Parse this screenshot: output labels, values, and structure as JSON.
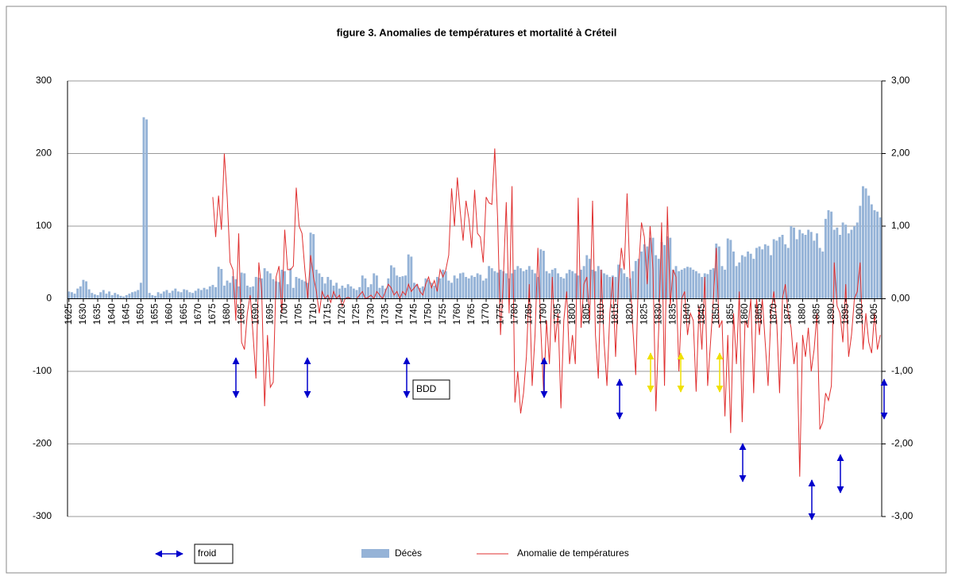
{
  "chart_data": {
    "type": "bar",
    "title": "figure 3. Anomalies de températures et mortalité à Créteil",
    "x": [
      1625,
      1626,
      1627,
      1628,
      1629,
      1630,
      1631,
      1632,
      1633,
      1634,
      1635,
      1636,
      1637,
      1638,
      1639,
      1640,
      1641,
      1642,
      1643,
      1644,
      1645,
      1646,
      1647,
      1648,
      1649,
      1650,
      1651,
      1652,
      1653,
      1654,
      1655,
      1656,
      1657,
      1658,
      1659,
      1660,
      1661,
      1662,
      1663,
      1664,
      1665,
      1666,
      1667,
      1668,
      1669,
      1670,
      1671,
      1672,
      1673,
      1674,
      1675,
      1676,
      1677,
      1678,
      1679,
      1680,
      1681,
      1682,
      1683,
      1684,
      1685,
      1686,
      1687,
      1688,
      1689,
      1690,
      1691,
      1692,
      1693,
      1694,
      1695,
      1696,
      1697,
      1698,
      1699,
      1700,
      1701,
      1702,
      1703,
      1704,
      1705,
      1706,
      1707,
      1708,
      1709,
      1710,
      1711,
      1712,
      1713,
      1714,
      1715,
      1716,
      1717,
      1718,
      1719,
      1720,
      1721,
      1722,
      1723,
      1724,
      1725,
      1726,
      1727,
      1728,
      1729,
      1730,
      1731,
      1732,
      1733,
      1734,
      1735,
      1736,
      1737,
      1738,
      1739,
      1740,
      1741,
      1742,
      1743,
      1744,
      1745,
      1746,
      1747,
      1748,
      1749,
      1750,
      1751,
      1752,
      1753,
      1754,
      1755,
      1756,
      1757,
      1758,
      1759,
      1760,
      1761,
      1762,
      1763,
      1764,
      1765,
      1766,
      1767,
      1768,
      1769,
      1770,
      1771,
      1772,
      1773,
      1774,
      1775,
      1776,
      1777,
      1778,
      1779,
      1780,
      1781,
      1782,
      1783,
      1784,
      1785,
      1786,
      1787,
      1788,
      1789,
      1790,
      1791,
      1792,
      1793,
      1794,
      1795,
      1796,
      1797,
      1798,
      1799,
      1800,
      1801,
      1802,
      1803,
      1804,
      1805,
      1806,
      1807,
      1808,
      1809,
      1810,
      1811,
      1812,
      1813,
      1814,
      1815,
      1816,
      1817,
      1818,
      1819,
      1820,
      1821,
      1822,
      1823,
      1824,
      1825,
      1826,
      1827,
      1828,
      1829,
      1830,
      1831,
      1832,
      1833,
      1834,
      1835,
      1836,
      1837,
      1838,
      1839,
      1840,
      1841,
      1842,
      1843,
      1844,
      1845,
      1846,
      1847,
      1848,
      1849,
      1850,
      1851,
      1852,
      1853,
      1854,
      1855,
      1856,
      1857,
      1858,
      1859,
      1860,
      1861,
      1862,
      1863,
      1864,
      1865,
      1866,
      1867,
      1868,
      1869,
      1870,
      1871,
      1872,
      1873,
      1874,
      1875,
      1876,
      1877,
      1878,
      1879,
      1880,
      1881,
      1882,
      1883,
      1884,
      1885,
      1886,
      1887,
      1888,
      1889,
      1890,
      1891,
      1892,
      1893,
      1894,
      1895,
      1896,
      1897,
      1898,
      1899,
      1900,
      1901,
      1902,
      1903,
      1904,
      1905,
      1906,
      1907
    ],
    "series": [
      {
        "name": "Décès",
        "type": "bar",
        "color": "#95b3d7",
        "values": [
          10,
          9,
          7,
          14,
          17,
          26,
          24,
          13,
          8,
          6,
          5,
          9,
          12,
          7,
          10,
          5,
          8,
          6,
          4,
          3,
          5,
          7,
          9,
          10,
          12,
          22,
          250,
          247,
          8,
          5,
          4,
          9,
          7,
          10,
          12,
          8,
          11,
          14,
          10,
          9,
          13,
          12,
          9,
          8,
          11,
          14,
          12,
          15,
          13,
          17,
          19,
          16,
          44,
          41,
          18,
          25,
          22,
          31,
          27,
          17,
          36,
          35,
          18,
          16,
          17,
          30,
          29,
          28,
          42,
          38,
          35,
          27,
          24,
          23,
          40,
          38,
          20,
          42,
          15,
          30,
          28,
          26,
          24,
          22,
          91,
          89,
          40,
          35,
          30,
          21,
          30,
          26,
          18,
          22,
          14,
          18,
          15,
          20,
          17,
          14,
          12,
          16,
          32,
          28,
          16,
          20,
          35,
          32,
          15,
          18,
          14,
          28,
          46,
          43,
          32,
          30,
          31,
          32,
          61,
          58,
          22,
          20,
          15,
          17,
          28,
          26,
          22,
          18,
          30,
          28,
          40,
          38,
          25,
          22,
          32,
          28,
          35,
          36,
          30,
          28,
          32,
          30,
          35,
          33,
          25,
          28,
          45,
          42,
          38,
          36,
          40,
          38,
          35,
          28,
          35,
          40,
          45,
          42,
          38,
          40,
          45,
          40,
          35,
          30,
          68,
          66,
          38,
          35,
          40,
          42,
          35,
          30,
          28,
          35,
          40,
          38,
          35,
          32,
          40,
          45,
          60,
          55,
          40,
          38,
          45,
          40,
          35,
          33,
          30,
          32,
          30,
          47,
          42,
          35,
          30,
          28,
          38,
          52,
          55,
          65,
          75,
          72,
          84,
          84,
          60,
          55,
          78,
          74,
          86,
          84,
          40,
          45,
          38,
          40,
          42,
          44,
          43,
          40,
          38,
          35,
          30,
          35,
          34,
          40,
          42,
          76,
          72,
          45,
          40,
          83,
          81,
          65,
          45,
          50,
          60,
          58,
          65,
          62,
          55,
          70,
          72,
          68,
          75,
          73,
          60,
          82,
          80,
          85,
          88,
          75,
          70,
          100,
          98,
          82,
          95,
          90,
          88,
          95,
          92,
          80,
          90,
          70,
          65,
          110,
          122,
          120,
          95,
          98,
          88,
          105,
          102,
          90,
          95,
          100,
          105,
          128,
          155,
          152,
          142,
          130,
          122,
          120,
          112
        ]
      },
      {
        "name": "Anomalie de températures",
        "type": "line",
        "axis": "y2",
        "color": "#e03030",
        "values": [
          null,
          null,
          null,
          null,
          null,
          null,
          null,
          null,
          null,
          null,
          null,
          null,
          null,
          null,
          null,
          null,
          null,
          null,
          null,
          null,
          null,
          null,
          null,
          null,
          null,
          null,
          null,
          null,
          null,
          null,
          null,
          null,
          null,
          null,
          null,
          null,
          null,
          null,
          null,
          null,
          null,
          null,
          null,
          null,
          null,
          null,
          null,
          null,
          null,
          null,
          1.4,
          0.85,
          1.42,
          0.95,
          2.0,
          1.4,
          0.5,
          0.4,
          -0.3,
          0.9,
          -0.6,
          -0.7,
          -0.2,
          0.05,
          -0.5,
          -1.1,
          0.5,
          0.1,
          -1.48,
          -0.5,
          -1.22,
          -1.15,
          0.3,
          0.45,
          -0.2,
          0.95,
          0.4,
          0.4,
          0.45,
          1.53,
          1.0,
          0.9,
          0.4,
          0.0,
          0.6,
          0.3,
          0.1,
          -0.2,
          0.1,
          0.0,
          0.05,
          -0.05,
          0.1,
          0.0,
          0.05,
          -0.1,
          0.0,
          0.02,
          0.0,
          0.0,
          0.0,
          0.05,
          0.1,
          0.0,
          0.02,
          0.05,
          0.0,
          0.1,
          0.05,
          0.0,
          0.1,
          0.2,
          0.15,
          0.05,
          0.1,
          0.0,
          0.1,
          0.05,
          0.2,
          0.1,
          0.15,
          0.2,
          0.1,
          0.05,
          0.2,
          0.3,
          0.15,
          0.25,
          0.1,
          0.4,
          0.3,
          0.4,
          0.6,
          1.52,
          1.0,
          1.67,
          1.2,
          0.8,
          1.35,
          1.1,
          0.7,
          1.5,
          0.9,
          0.85,
          0.5,
          1.4,
          1.32,
          1.3,
          2.07,
          1.1,
          -0.5,
          0.3,
          1.33,
          -0.2,
          1.55,
          -1.43,
          -1.0,
          -1.58,
          -1.3,
          -0.8,
          0.2,
          -1.2,
          -0.5,
          0.7,
          -0.4,
          -1.3,
          -0.3,
          -0.9,
          0.3,
          -0.6,
          -0.2,
          -1.51,
          -0.3,
          0.1,
          -0.9,
          -0.5,
          -0.9,
          1.39,
          -0.4,
          0.2,
          0.3,
          -0.3,
          1.35,
          -0.5,
          -1.1,
          0.4,
          -0.6,
          -1.2,
          -0.2,
          0.3,
          -0.8,
          0.2,
          0.7,
          0.4,
          1.45,
          0.3,
          -0.4,
          -1.05,
          0.4,
          1.05,
          0.85,
          0.2,
          1.0,
          0.4,
          -1.55,
          -0.4,
          1.05,
          -1.2,
          1.27,
          -0.1,
          0.4,
          0.3,
          -1.0,
          0.0,
          0.1,
          -0.5,
          -0.2,
          -0.3,
          -1.28,
          -0.1,
          -0.7,
          0.3,
          -1.2,
          -0.6,
          0.0,
          0.7,
          -0.4,
          -0.3,
          -1.62,
          -0.5,
          -1.85,
          -0.2,
          -0.9,
          0.1,
          -1.7,
          -0.3,
          -0.4,
          0.0,
          -1.3,
          0.0,
          -0.5,
          0.0,
          -0.6,
          -1.2,
          -0.2,
          0.1,
          -0.3,
          -1.3,
          0.0,
          0.2,
          -0.2,
          -0.4,
          -0.9,
          -0.6,
          -2.45,
          -0.5,
          -0.8,
          -0.4,
          -1.0,
          -0.7,
          -0.2,
          -1.8,
          -1.7,
          -1.3,
          -1.4,
          -1.2,
          0.5,
          -0.1,
          -0.2,
          -0.6,
          0.2,
          -0.8,
          -0.5,
          0.0,
          0.1,
          0.5,
          -0.7,
          -0.2,
          -0.6,
          -0.75,
          -0.2,
          -0.7,
          -0.5
        ]
      }
    ],
    "xlim": [
      1624.5,
      1907.5
    ],
    "xticks": [
      1625,
      1630,
      1635,
      1640,
      1645,
      1650,
      1655,
      1660,
      1665,
      1670,
      1675,
      1680,
      1685,
      1690,
      1695,
      1700,
      1705,
      1710,
      1715,
      1720,
      1725,
      1730,
      1735,
      1740,
      1745,
      1750,
      1755,
      1760,
      1765,
      1770,
      1775,
      1780,
      1785,
      1790,
      1795,
      1800,
      1805,
      1810,
      1815,
      1820,
      1825,
      1830,
      1835,
      1840,
      1845,
      1850,
      1855,
      1860,
      1865,
      1870,
      1875,
      1880,
      1885,
      1890,
      1895,
      1900,
      1905
    ],
    "ylim": [
      -300,
      300
    ],
    "yticks": [
      -300,
      -200,
      -100,
      0,
      100,
      200,
      300
    ],
    "y2lim": [
      -3,
      3
    ],
    "y2ticks": [
      {
        "value": -3,
        "label": "-3,00"
      },
      {
        "value": -2,
        "label": "-2,00"
      },
      {
        "value": -1,
        "label": "-1,00"
      },
      {
        "value": 0,
        "label": "0,00"
      },
      {
        "value": 1,
        "label": "1,00"
      },
      {
        "value": 2,
        "label": "2,00"
      },
      {
        "value": 3,
        "label": "3,00"
      }
    ],
    "grid": true,
    "legend": "bottom",
    "annotations": [
      "BDD",
      "froid"
    ]
  }
}
